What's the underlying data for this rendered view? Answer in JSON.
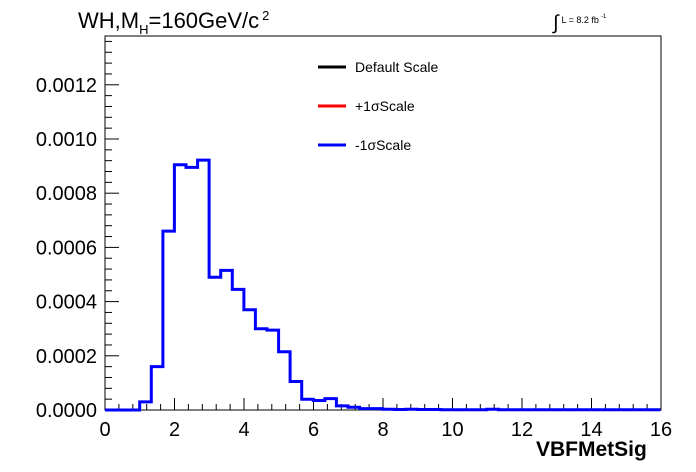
{
  "title": {
    "prefix": "WH,M",
    "sub": "H",
    "rest": "=160GeV/c",
    "sup": "2"
  },
  "luminosity": {
    "integral": "∫",
    "text": "L = 8.2 fb",
    "sup": "-1"
  },
  "chart_data": {
    "type": "histogram",
    "xlabel": "VBFMetSig",
    "ylabel": "",
    "xlim": [
      0,
      16
    ],
    "ylim": [
      0,
      0.00138
    ],
    "x_ticks": [
      "0",
      "2",
      "4",
      "6",
      "8",
      "10",
      "12",
      "14",
      "16"
    ],
    "y_ticks": [
      "0.0000",
      "0.0002",
      "0.0004",
      "0.0006",
      "0.0008",
      "0.0010",
      "0.0012"
    ],
    "y_tick_values": [
      0,
      0.0002,
      0.0004,
      0.0006,
      0.0008,
      0.001,
      0.0012
    ],
    "bin_width": 0.333,
    "bin_edges_start": 0,
    "series": [
      {
        "name": "Default Scale",
        "color": "#000000"
      },
      {
        "name": "+1σScale",
        "color": "#ff0000"
      },
      {
        "name": "-1σScale",
        "color": "#0000ff",
        "values": [
          0,
          0,
          0,
          3e-05,
          0.00016,
          0.00066,
          0.000905,
          0.000895,
          0.000922,
          0.00049,
          0.000515,
          0.000445,
          0.00037,
          0.0003,
          0.000295,
          0.000215,
          0.000105,
          4e-05,
          3.5e-05,
          4.2e-05,
          1.5e-05,
          1e-05,
          5e-06,
          5e-06,
          3e-06,
          2e-06,
          3e-06,
          2e-06,
          2e-06,
          1e-06,
          1e-06,
          1e-06,
          1e-06,
          3e-06,
          1e-06,
          1e-06,
          1e-06,
          1e-06,
          1e-06,
          1e-06,
          1e-06,
          1e-06,
          1e-06,
          1e-06,
          1e-06,
          1e-06,
          1e-06,
          1e-06
        ]
      }
    ],
    "legend": {
      "placement": "top-center"
    }
  }
}
